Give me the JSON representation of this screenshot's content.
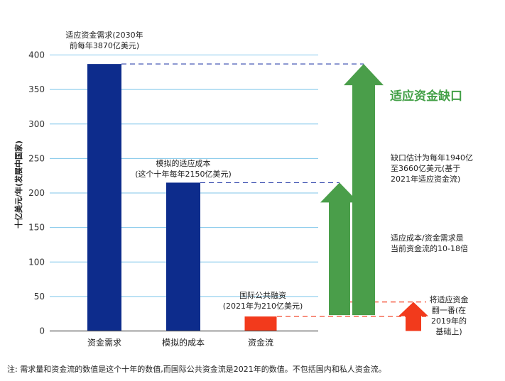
{
  "chart_data": {
    "type": "bar",
    "ylabel": "十亿美元/年(发展中国家)",
    "ylim": [
      0,
      400
    ],
    "yticks": [
      0,
      50,
      100,
      150,
      200,
      250,
      300,
      350,
      400
    ],
    "grid": true,
    "categories": [
      "资金需求",
      "模拟的成本",
      "资金流"
    ],
    "values": [
      387,
      215,
      21
    ],
    "bar_colors": [
      "#0d2c8c",
      "#0d2c8c",
      "#f23a1c"
    ],
    "annotations": [
      [
        "适应资金需求(2030年",
        "前每年3870亿美元)"
      ],
      [
        "模拟的适应成本",
        "(这个十年每年2150亿美元)"
      ],
      [
        "国际公共融资",
        "(2021年为210亿美元)"
      ]
    ],
    "gap_title": "适应资金缺口",
    "gap_notes": [
      [
        "缺口估计为每年1940亿",
        "至3660亿美元(基于",
        "2021年适应资金流)"
      ],
      [
        "适应成本/资金需求是",
        "当前资金流的10-18倍"
      ],
      [
        "将适应资金",
        "翻一番(在",
        "2019年的",
        "基础上)"
      ]
    ],
    "arrow_colors": {
      "gap": "#4a9e4a",
      "double": "#f23a1c"
    },
    "note": "注:  需求量和资金流的数值是这个十年的数值,而国际公共资金流是2021年的数值。不包括国内和私人资金流。"
  }
}
